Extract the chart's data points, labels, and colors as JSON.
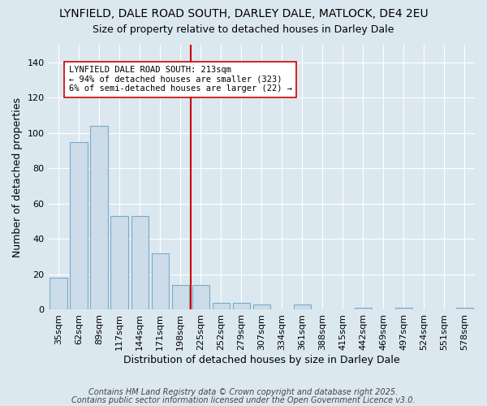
{
  "title": "LYNFIELD, DALE ROAD SOUTH, DARLEY DALE, MATLOCK, DE4 2EU",
  "subtitle": "Size of property relative to detached houses in Darley Dale",
  "xlabel": "Distribution of detached houses by size in Darley Dale",
  "ylabel": "Number of detached properties",
  "categories": [
    "35sqm",
    "62sqm",
    "89sqm",
    "117sqm",
    "144sqm",
    "171sqm",
    "198sqm",
    "225sqm",
    "252sqm",
    "279sqm",
    "307sqm",
    "334sqm",
    "361sqm",
    "388sqm",
    "415sqm",
    "442sqm",
    "469sqm",
    "497sqm",
    "524sqm",
    "551sqm",
    "578sqm"
  ],
  "values": [
    18,
    95,
    104,
    53,
    53,
    32,
    14,
    14,
    4,
    4,
    3,
    0,
    3,
    0,
    0,
    1,
    0,
    1,
    0,
    0,
    1
  ],
  "bar_color": "#ccdce8",
  "bar_edge_color": "#7aaac8",
  "background_color": "#dce8f0",
  "vline_color": "#cc0000",
  "vline_pos": 6.5,
  "annotation_title": "LYNFIELD DALE ROAD SOUTH: 213sqm",
  "annotation_line1": "← 94% of detached houses are smaller (323)",
  "annotation_line2": "6% of semi-detached houses are larger (22) →",
  "annotation_box_facecolor": "#ffffff",
  "annotation_box_edgecolor": "#cc0000",
  "footer1": "Contains HM Land Registry data © Crown copyright and database right 2025.",
  "footer2": "Contains public sector information licensed under the Open Government Licence v3.0.",
  "ylim": [
    0,
    150
  ],
  "yticks": [
    0,
    20,
    40,
    60,
    80,
    100,
    120,
    140
  ],
  "title_fontsize": 10,
  "subtitle_fontsize": 9,
  "xlabel_fontsize": 9,
  "ylabel_fontsize": 9,
  "tick_fontsize": 8,
  "footer_fontsize": 7
}
